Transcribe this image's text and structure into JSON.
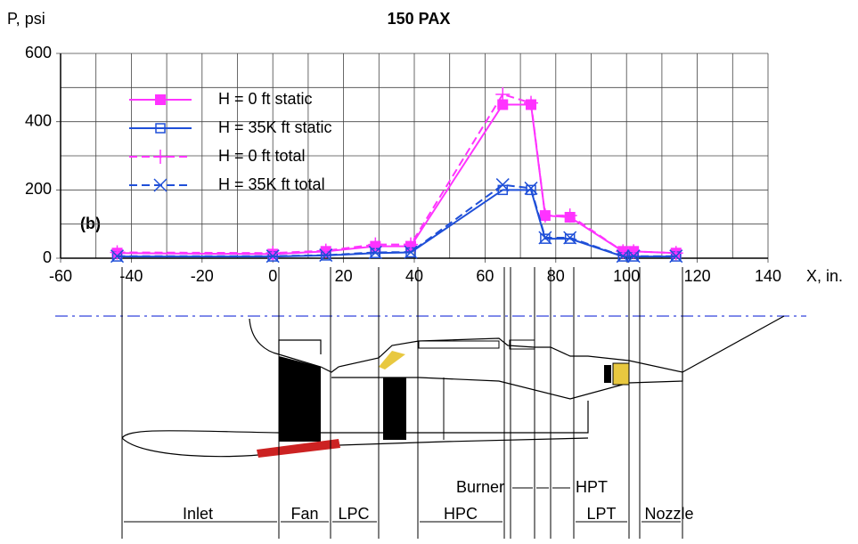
{
  "chart_data": {
    "type": "line",
    "title": "150 PAX",
    "ylabel": "P, psi",
    "xlabel": "X, in.",
    "annotation": "(b)",
    "x": [
      -44,
      0,
      15,
      29,
      39,
      65,
      73,
      77,
      84,
      99,
      102,
      114
    ],
    "series": [
      {
        "name": "H = 0 ft static",
        "color": "#ff33ff",
        "marker": "square-filled",
        "linestyle": "solid",
        "values": [
          15,
          12,
          20,
          35,
          35,
          450,
          450,
          125,
          120,
          20,
          20,
          15
        ]
      },
      {
        "name": "H = 35K ft static",
        "color": "#1f4fd8",
        "marker": "square-open",
        "linestyle": "solid",
        "values": [
          5,
          5,
          8,
          15,
          17,
          200,
          200,
          57,
          57,
          5,
          5,
          5
        ]
      },
      {
        "name": "H = 0 ft total",
        "color": "#ff33ff",
        "marker": "plus",
        "linestyle": "dashed",
        "values": [
          17,
          15,
          22,
          40,
          40,
          480,
          455,
          125,
          125,
          20,
          20,
          15
        ]
      },
      {
        "name": "H = 35K ft total",
        "color": "#1f4fd8",
        "marker": "x",
        "linestyle": "dashed",
        "values": [
          6,
          6,
          9,
          17,
          18,
          215,
          205,
          60,
          60,
          6,
          6,
          6
        ]
      }
    ],
    "xlim": [
      -60,
      140
    ],
    "xticks": [
      -60,
      -40,
      -20,
      0,
      20,
      40,
      60,
      80,
      100,
      120,
      140
    ],
    "ylim": [
      0,
      600
    ],
    "yticks": [
      0,
      200,
      400,
      600
    ],
    "xgrid": [
      -50,
      -30,
      -10,
      10,
      30,
      50,
      70,
      90,
      110,
      130
    ],
    "ygrid": [
      100,
      300,
      500
    ],
    "grid": true,
    "legend": "upper left"
  },
  "diagram": {
    "components": [
      "Inlet",
      "Fan",
      "LPC",
      "HPC",
      "Burner",
      "HPT",
      "LPT",
      "Nozzle"
    ]
  }
}
